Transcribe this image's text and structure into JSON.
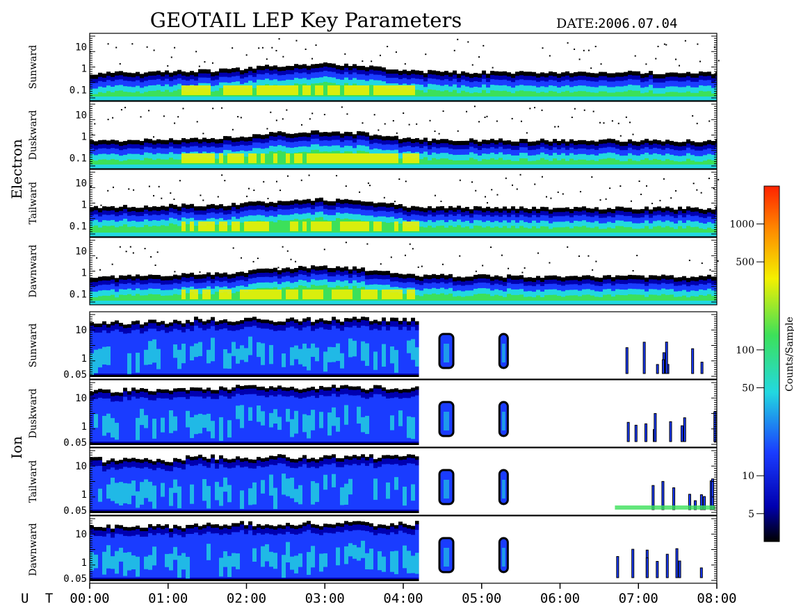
{
  "title": "GEOTAIL LEP Key Parameters",
  "date_label": "DATE:",
  "date_value": "2006.07.04",
  "colors": {
    "black": "#000000",
    "dark_blue": "#0000b0",
    "blue": "#1a3cff",
    "cyan": "#22d8e0",
    "green": "#3ce05a",
    "yellow": "#f4f000",
    "orange": "#ff8800",
    "red": "#ff2200"
  },
  "chart_data": {
    "type": "heatmap",
    "x_axis": {
      "unit_label": "U T",
      "ticks": [
        "00:00",
        "01:00",
        "02:00",
        "03:00",
        "04:00",
        "05:00",
        "06:00",
        "07:00",
        "08:00"
      ],
      "range": [
        "00:00",
        "08:00"
      ]
    },
    "colorbar": {
      "label": "Counts/Sample",
      "scale": "log",
      "range": [
        3,
        2000
      ],
      "ticks": [
        "5",
        "10",
        "50",
        "100",
        "500",
        "1000"
      ]
    },
    "groups": [
      {
        "name": "Electron",
        "y_scale": "log",
        "y_ticks": [
          "10",
          "1",
          "0.1"
        ],
        "panels": [
          {
            "name": "Sunward",
            "energy_edge": [
              0.6,
              0.7,
              0.82,
              0.9,
              1.3,
              1.5,
              1.35,
              0.8,
              0.72,
              0.7,
              0.68,
              0.68,
              0.7,
              0.66,
              0.66
            ]
          },
          {
            "name": "Duskward",
            "energy_edge": [
              0.62,
              0.72,
              0.85,
              0.95,
              1.35,
              1.55,
              1.4,
              0.85,
              0.75,
              0.72,
              0.7,
              0.7,
              0.72,
              0.68,
              0.68
            ]
          },
          {
            "name": "Tailward",
            "energy_edge": [
              0.8,
              0.9,
              1.0,
              1.05,
              1.35,
              1.55,
              1.45,
              0.9,
              0.8,
              0.76,
              0.74,
              0.74,
              0.76,
              0.72,
              0.74
            ]
          },
          {
            "name": "Dawnward",
            "energy_edge": [
              0.65,
              0.75,
              0.88,
              0.98,
              1.4,
              1.6,
              1.45,
              0.85,
              0.76,
              0.74,
              0.72,
              0.72,
              0.74,
              0.7,
              0.72
            ]
          }
        ]
      },
      {
        "name": "Ion",
        "y_scale": "log",
        "y_ticks": [
          "10",
          "1",
          "0.05"
        ],
        "panels": [
          {
            "name": "Sunward"
          },
          {
            "name": "Duskward"
          },
          {
            "name": "Tailward"
          },
          {
            "name": "Dawnward"
          }
        ]
      }
    ]
  }
}
